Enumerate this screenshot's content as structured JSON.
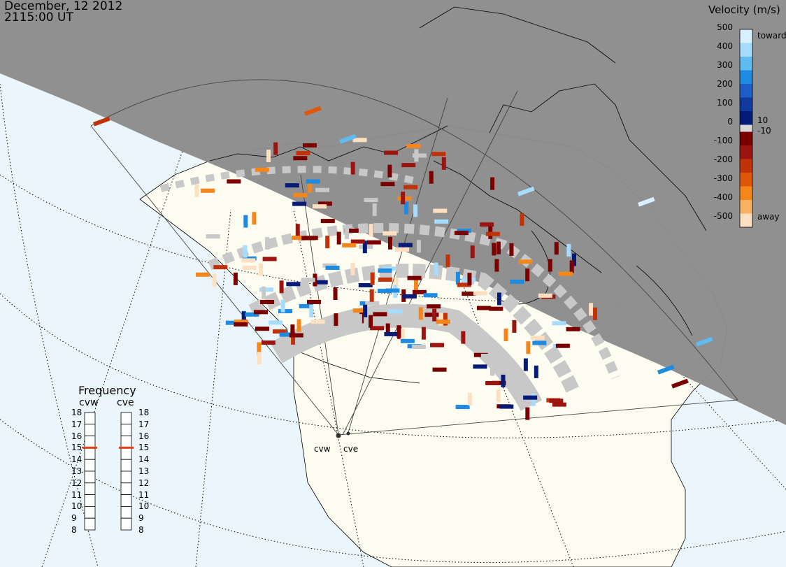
{
  "timestamp": {
    "date": "December, 12 2012",
    "time": "2115:00 UT"
  },
  "colorbar": {
    "title": "Velocity (m/s)",
    "ticks": [
      "500",
      "400",
      "300",
      "200",
      "100",
      "0",
      "-100",
      "-200",
      "-300",
      "-400",
      "-500"
    ],
    "inner_ticks": [
      "10",
      "-10"
    ],
    "toward_label": "toward",
    "away_label": "away",
    "colors_toward": [
      "#d8f0ff",
      "#a6dcff",
      "#5fbbf0",
      "#1e8be0",
      "#1d5fc6",
      "#123a9e",
      "#061a78"
    ],
    "colors_away": [
      "#7a0000",
      "#9c1410",
      "#c23208",
      "#e0570a",
      "#f5861a",
      "#fbb163",
      "#fde0c2"
    ]
  },
  "frequency_panel": {
    "title": "Frequency",
    "radars": [
      "cvw",
      "cve"
    ],
    "mhz_ticks": [
      "18",
      "17",
      "16",
      "15",
      "14",
      "13",
      "12",
      "11",
      "10",
      "9",
      "8"
    ],
    "current_mhz": [
      15,
      15
    ],
    "indicator_color": "#e0401a"
  },
  "map": {
    "site_labels": [
      "cvw",
      "cve"
    ],
    "colors": {
      "night": "#8c8c8c",
      "ocean": "#eaf6fc",
      "land": "#fcfcf0",
      "ground_scatter": "#c8c8c8"
    }
  }
}
